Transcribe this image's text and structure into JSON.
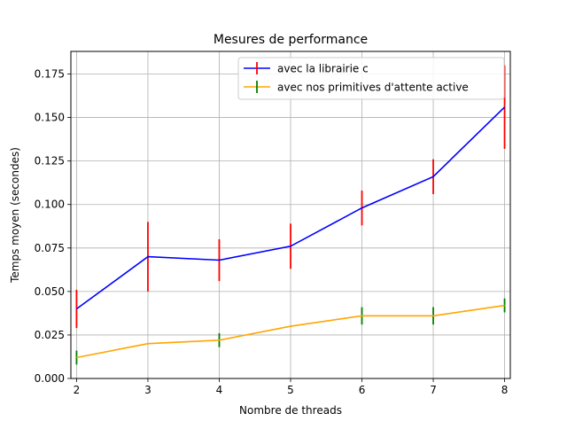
{
  "chart_data": {
    "type": "line",
    "title": "Mesures de performance",
    "xlabel": "Nombre de threads",
    "ylabel": "Temps moyen (secondes)",
    "x": [
      2,
      3,
      4,
      5,
      6,
      7,
      8
    ],
    "xlim": [
      1.92,
      8.08
    ],
    "ylim": [
      0.0,
      0.188
    ],
    "xticks": [
      "2",
      "3",
      "4",
      "5",
      "6",
      "7",
      "8"
    ],
    "yticks": [
      "0.000",
      "0.025",
      "0.050",
      "0.075",
      "0.100",
      "0.125",
      "0.150",
      "0.175"
    ],
    "grid": true,
    "legend_position": "top-right",
    "series": [
      {
        "name": "avec la librairie c",
        "color": "#0000ff",
        "error_color": "#ff0000",
        "values": [
          0.04,
          0.07,
          0.068,
          0.076,
          0.098,
          0.116,
          0.156
        ],
        "errors": [
          0.011,
          0.02,
          0.012,
          0.013,
          0.01,
          0.01,
          0.024
        ]
      },
      {
        "name": "avec nos primitives d'attente active",
        "color": "#ffa500",
        "error_color": "#008000",
        "values": [
          0.012,
          0.02,
          0.022,
          0.03,
          0.036,
          0.036,
          0.042
        ],
        "errors": [
          0.004,
          0.0,
          0.004,
          0.0,
          0.005,
          0.005,
          0.004
        ]
      }
    ]
  }
}
